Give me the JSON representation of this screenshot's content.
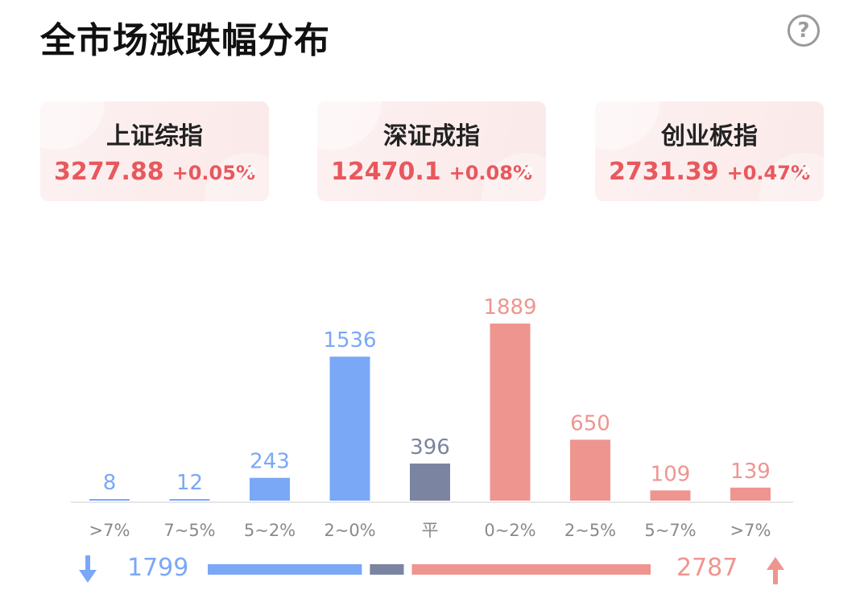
{
  "header": {
    "title": "全市场涨跌幅分布",
    "help_symbol": "?"
  },
  "indices": [
    {
      "name": "上证综指",
      "value": "3277.88",
      "change": "+0.05%"
    },
    {
      "name": "深证成指",
      "value": "12470.1",
      "change": "+0.08%"
    },
    {
      "name": "创业板指",
      "value": "2731.39",
      "change": "+0.47%"
    }
  ],
  "colors": {
    "down": "#7aa8f6",
    "flat": "#7b84a0",
    "up": "#ee9590",
    "up_text": "#e8585d",
    "axis_label": "#8a8a8a"
  },
  "chart_data": {
    "type": "bar",
    "categories": [
      ">7%",
      "7~5%",
      "5~2%",
      "2~0%",
      "平",
      "0~2%",
      "2~5%",
      "5~7%",
      ">7%"
    ],
    "values": [
      8,
      12,
      243,
      1536,
      396,
      1889,
      650,
      109,
      139
    ],
    "bar_groups": [
      "down",
      "down",
      "down",
      "down",
      "flat",
      "up",
      "up",
      "up",
      "up"
    ],
    "ylim": [
      0,
      1889
    ]
  },
  "summary": {
    "down_count": "1799",
    "up_count": "2787",
    "flat_count": 396
  }
}
